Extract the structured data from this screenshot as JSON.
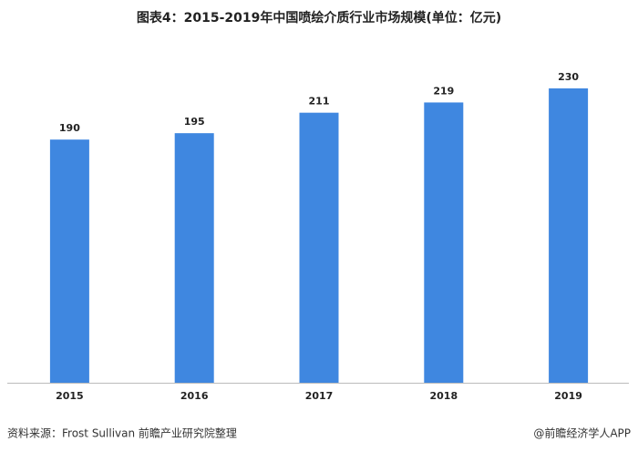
{
  "chart_data": {
    "type": "bar",
    "title": "图表4：2015-2019年中国喷绘介质行业市场规模(单位：亿元)",
    "categories": [
      "2015",
      "2016",
      "2017",
      "2018",
      "2019"
    ],
    "values": [
      190,
      195,
      211,
      219,
      230
    ],
    "color": "#3f87e0",
    "source": "资料来源：Frost Sullivan 前瞻产业研究院整理",
    "credit": "@前瞻经济学人APP"
  }
}
